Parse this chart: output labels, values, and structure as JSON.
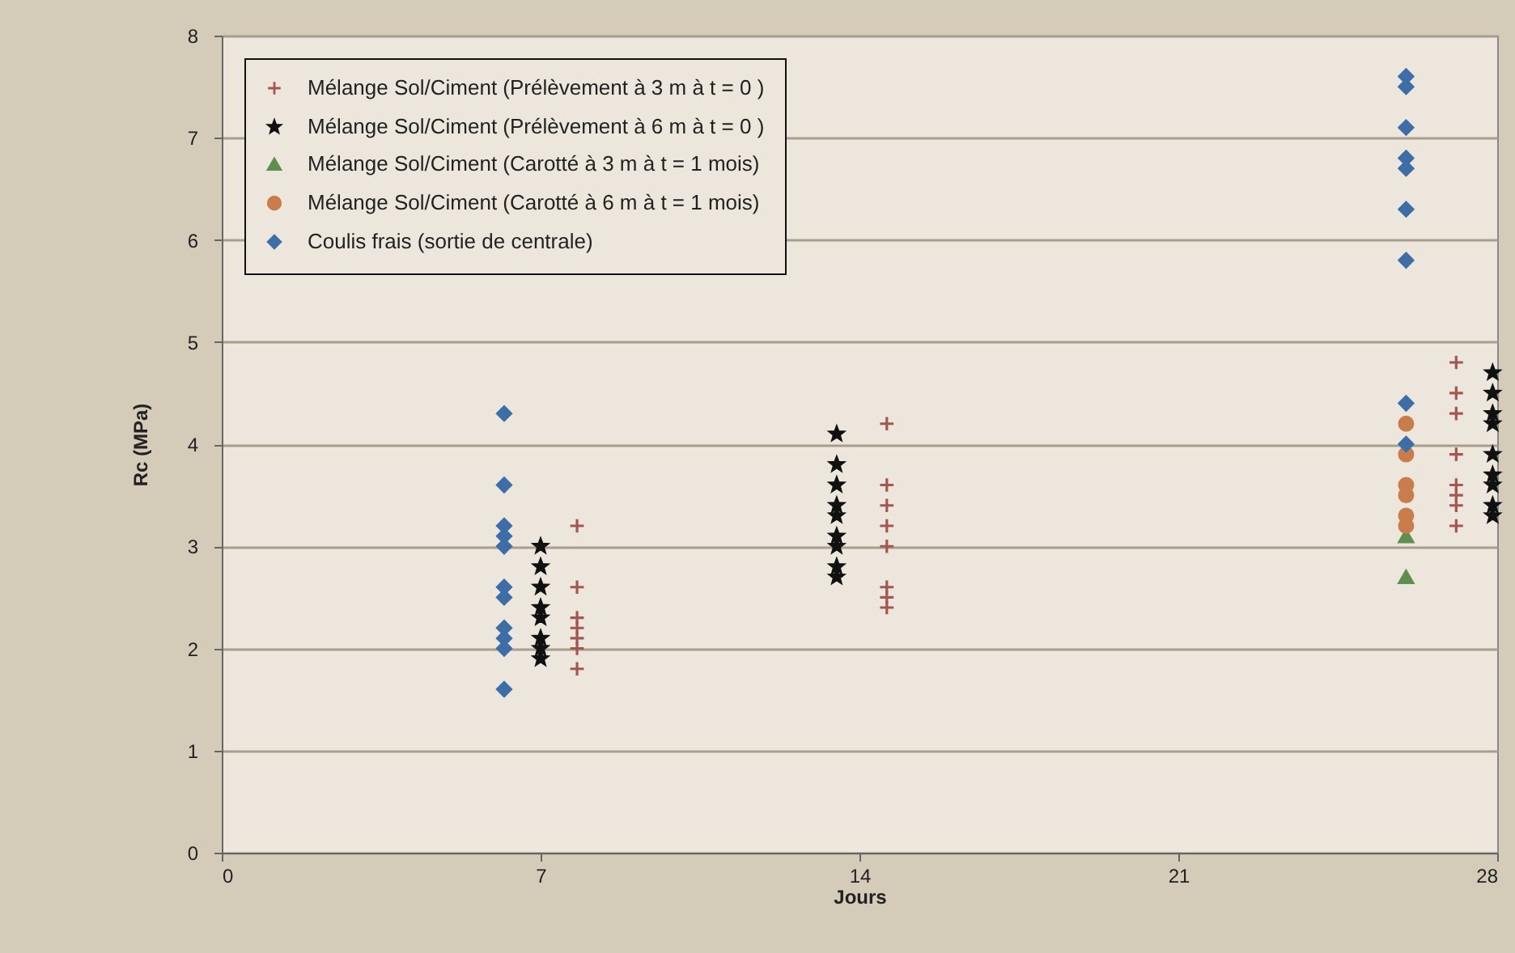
{
  "chart_data": {
    "type": "scatter",
    "xlabel": "Jours",
    "ylabel": "Rc (MPa)",
    "xlim": [
      0,
      28
    ],
    "xticks": [
      0,
      7,
      14,
      21,
      28
    ],
    "ylim": [
      0,
      8
    ],
    "yticks": [
      0,
      1,
      2,
      3,
      4,
      5,
      6,
      7,
      8
    ],
    "grid": "y",
    "legend": "top left",
    "series": [
      {
        "name": "Mélange Sol/Ciment (Prélèvement à 3 m à t = 0 )",
        "color": "#a3574f",
        "marker": "cross",
        "x": [
          7.8,
          7.8,
          7.8,
          7.8,
          7.8,
          7.8,
          7.8,
          14.6,
          14.6,
          14.6,
          14.6,
          14.6,
          14.6,
          14.6,
          14.6,
          27.1,
          27.1,
          27.1,
          27.1,
          27.1,
          27.1,
          27.1,
          27.1
        ],
        "values": [
          3.2,
          2.6,
          2.3,
          2.2,
          2.1,
          2.0,
          1.8,
          4.2,
          3.6,
          3.4,
          3.2,
          3.0,
          2.6,
          2.5,
          2.4,
          4.8,
          4.5,
          4.3,
          3.9,
          3.6,
          3.5,
          3.4,
          3.2
        ]
      },
      {
        "name": "Mélange Sol/Ciment (Prélèvement à 6 m à t = 0 )",
        "color": "#111111",
        "marker": "star",
        "x": [
          7,
          7,
          7,
          7,
          7,
          7,
          7,
          7,
          13.5,
          13.5,
          13.5,
          13.5,
          13.5,
          13.5,
          13.5,
          13.5,
          13.5,
          27.9,
          27.9,
          27.9,
          27.9,
          27.9,
          27.9,
          27.9,
          27.9,
          27.9
        ],
        "values": [
          3.0,
          2.8,
          2.6,
          2.4,
          2.3,
          2.1,
          2.0,
          1.9,
          4.1,
          3.8,
          3.6,
          3.4,
          3.3,
          3.1,
          3.0,
          2.8,
          2.7,
          4.7,
          4.5,
          4.3,
          4.2,
          3.9,
          3.7,
          3.6,
          3.4,
          3.3
        ]
      },
      {
        "name": "Mélange Sol/Ciment (Carotté à 3 m à t = 1 mois)",
        "color": "#5f8f4e",
        "marker": "triangle",
        "x": [
          26,
          26
        ],
        "values": [
          3.1,
          2.7
        ]
      },
      {
        "name": "Mélange Sol/Ciment (Carotté à 6 m à t = 1 mois)",
        "color": "#c97d4b",
        "marker": "circle",
        "x": [
          26,
          26,
          26,
          26,
          26,
          26
        ],
        "values": [
          4.2,
          3.9,
          3.6,
          3.5,
          3.3,
          3.2
        ]
      },
      {
        "name": "Coulis frais (sortie de centrale)",
        "color": "#3d6ea8",
        "marker": "diamond",
        "x": [
          6.2,
          6.2,
          6.2,
          6.2,
          6.2,
          6.2,
          6.2,
          6.2,
          6.2,
          6.2,
          6.2,
          26,
          26,
          26,
          26,
          26,
          26,
          26,
          26,
          26
        ],
        "values": [
          4.3,
          3.6,
          3.2,
          3.1,
          3.0,
          2.6,
          2.5,
          2.2,
          2.1,
          2.0,
          1.6,
          7.6,
          7.5,
          7.1,
          6.8,
          6.7,
          6.3,
          5.8,
          4.4,
          4.0
        ]
      }
    ]
  }
}
